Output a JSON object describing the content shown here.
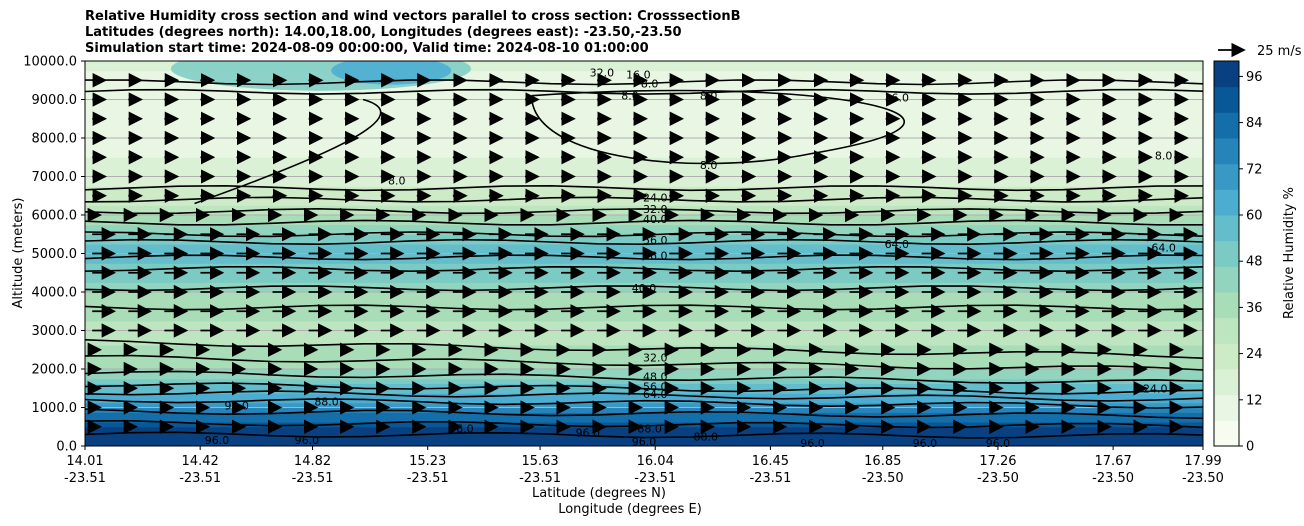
{
  "title_lines": [
    "Relative Humidity cross section and wind vectors parallel to cross section: CrosssectionB",
    "Latitudes (degrees north): 14.00,18.00, Longitudes (degrees east): -23.50,-23.50",
    "Simulation start time: 2024-08-09 00:00:00, Valid time: 2024-08-10 01:00:00"
  ],
  "colors": {
    "palette": [
      "#f7fcf0",
      "#e8f6e3",
      "#dbf1d5",
      "#cdebc6",
      "#bde5bf",
      "#a9ddb7",
      "#92d4bd",
      "#7bcbc4",
      "#63bdca",
      "#4dadd1",
      "#3a98c5",
      "#2684bb",
      "#146eaa",
      "#085897",
      "#084081"
    ],
    "contour": "#000000",
    "grid": "#b0b0b0"
  },
  "chart_data": {
    "type": "contour",
    "xlabel": "Latitude (degrees N)",
    "xlabel2": "Longitude (degrees E)",
    "ylabel": "Altitude (meters)",
    "ylim": [
      0,
      10000
    ],
    "y_ticks": [
      "0.0",
      "1000.0",
      "2000.0",
      "3000.0",
      "4000.0",
      "5000.0",
      "6000.0",
      "7000.0",
      "8000.0",
      "9000.0",
      "10000.0"
    ],
    "x_ticks_lat": [
      "14.01",
      "14.42",
      "14.82",
      "15.23",
      "15.63",
      "16.04",
      "16.45",
      "16.85",
      "17.26",
      "17.67",
      "17.99"
    ],
    "x_ticks_lon": [
      "-23.51",
      "-23.51",
      "-23.51",
      "-23.51",
      "-23.51",
      "-23.51",
      "-23.51",
      "-23.50",
      "-23.50",
      "-23.50",
      "-23.50"
    ],
    "colorbar": {
      "label": "Relative Humidity %",
      "range": [
        0,
        100
      ],
      "ticks": [
        "0",
        "12",
        "24",
        "36",
        "48",
        "60",
        "72",
        "84",
        "96"
      ]
    },
    "quiver_key": "25 m/s",
    "rh_profile": [
      {
        "alt": 0,
        "rh": 98
      },
      {
        "alt": 500,
        "rh": 94
      },
      {
        "alt": 1000,
        "rh": 72
      },
      {
        "alt": 1500,
        "rh": 56
      },
      {
        "alt": 2000,
        "rh": 40
      },
      {
        "alt": 2500,
        "rh": 34
      },
      {
        "alt": 3000,
        "rh": 30
      },
      {
        "alt": 4000,
        "rh": 40
      },
      {
        "alt": 5000,
        "rh": 58
      },
      {
        "alt": 6000,
        "rh": 30
      },
      {
        "alt": 7000,
        "rh": 16
      },
      {
        "alt": 8000,
        "rh": 10
      },
      {
        "alt": 9000,
        "rh": 10
      },
      {
        "alt": 10000,
        "rh": 14
      }
    ],
    "contour_labels": [
      {
        "text": "32.0",
        "lat": 15.85,
        "alt": 9700
      },
      {
        "text": "16.0",
        "lat": 15.98,
        "alt": 9650
      },
      {
        "text": "8.0",
        "lat": 16.02,
        "alt": 9420
      },
      {
        "text": "8.0",
        "lat": 15.95,
        "alt": 9100
      },
      {
        "text": "8.0",
        "lat": 16.23,
        "alt": 9100
      },
      {
        "text": "16.0",
        "lat": 16.9,
        "alt": 9050
      },
      {
        "text": "8.0",
        "lat": 16.23,
        "alt": 7300
      },
      {
        "text": "8.0",
        "lat": 15.12,
        "alt": 6900
      },
      {
        "text": "8.0",
        "lat": 17.85,
        "alt": 7550
      },
      {
        "text": "24.0",
        "lat": 16.04,
        "alt": 6450
      },
      {
        "text": "32.0",
        "lat": 16.04,
        "alt": 6150
      },
      {
        "text": "40.0",
        "lat": 16.04,
        "alt": 5900
      },
      {
        "text": "56.0",
        "lat": 16.04,
        "alt": 5350
      },
      {
        "text": "64.0",
        "lat": 16.9,
        "alt": 5250
      },
      {
        "text": "64.0",
        "lat": 17.85,
        "alt": 5150
      },
      {
        "text": "56.0",
        "lat": 16.04,
        "alt": 4950
      },
      {
        "text": "40.0",
        "lat": 16.0,
        "alt": 4100
      },
      {
        "text": "32.0",
        "lat": 16.04,
        "alt": 2300
      },
      {
        "text": "48.0",
        "lat": 16.04,
        "alt": 1800
      },
      {
        "text": "56.0",
        "lat": 16.04,
        "alt": 1550
      },
      {
        "text": "64.0",
        "lat": 16.04,
        "alt": 1350
      },
      {
        "text": "24.0",
        "lat": 17.82,
        "alt": 1500
      },
      {
        "text": "88.0",
        "lat": 14.87,
        "alt": 1150
      },
      {
        "text": "96.0",
        "lat": 14.55,
        "alt": 1050
      },
      {
        "text": "88.0",
        "lat": 16.02,
        "alt": 450
      },
      {
        "text": "96.0",
        "lat": 15.35,
        "alt": 450
      },
      {
        "text": "96.0",
        "lat": 15.8,
        "alt": 350
      },
      {
        "text": "96.0",
        "lat": 14.48,
        "alt": 150
      },
      {
        "text": "96.0",
        "lat": 14.8,
        "alt": 150
      },
      {
        "text": "96.0",
        "lat": 16.0,
        "alt": 120
      },
      {
        "text": "88.0",
        "lat": 16.22,
        "alt": 250
      },
      {
        "text": "96.0",
        "lat": 16.6,
        "alt": 80
      },
      {
        "text": "96.0",
        "lat": 17.0,
        "alt": 80
      },
      {
        "text": "96.0",
        "lat": 17.26,
        "alt": 80
      }
    ]
  }
}
